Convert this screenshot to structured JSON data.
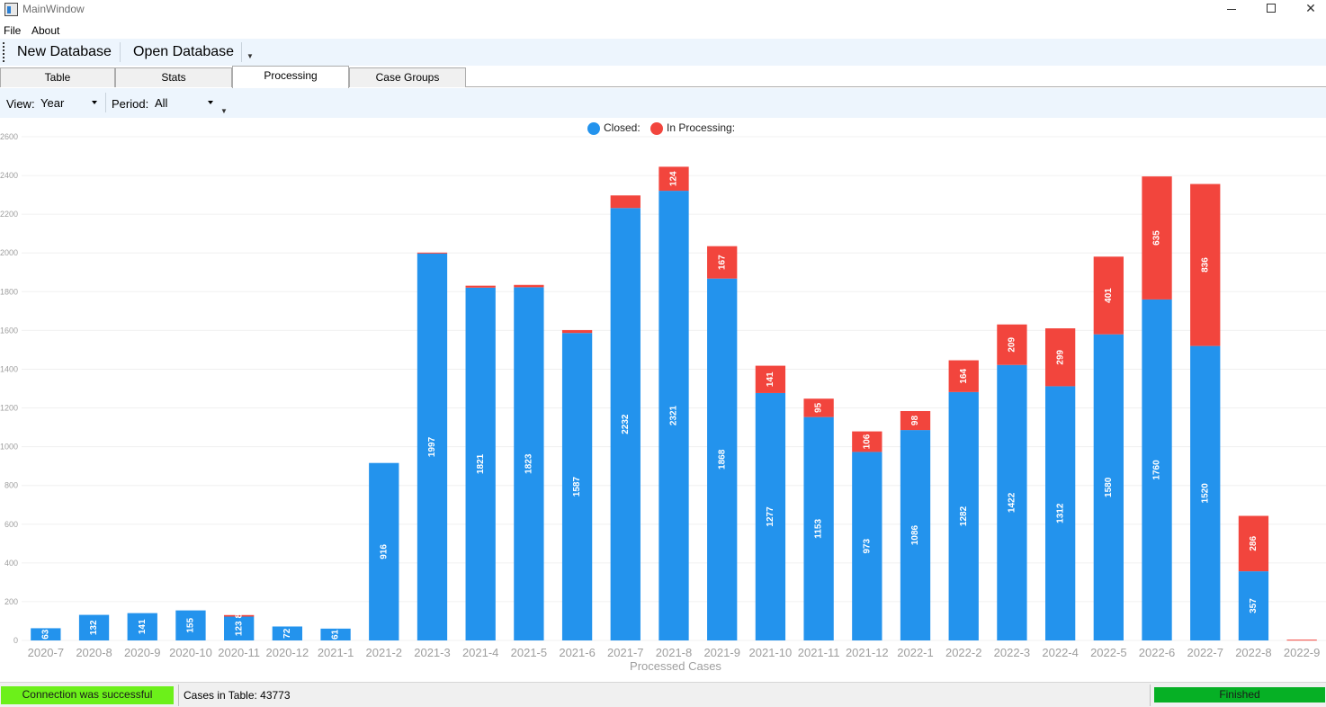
{
  "window": {
    "title": "MainWindow"
  },
  "menu": {
    "file": "File",
    "about": "About"
  },
  "toolbar": {
    "new_db": "New Database",
    "open_db": "Open Database"
  },
  "tabs": [
    {
      "label": "Table"
    },
    {
      "label": "Stats"
    },
    {
      "label": "Processing"
    },
    {
      "label": "Case Groups"
    }
  ],
  "filters": {
    "view_label": "View:",
    "view_value": "Year",
    "period_label": "Period:",
    "period_value": "All"
  },
  "legend": {
    "closed": "Closed:",
    "processing": "In Processing:"
  },
  "colors": {
    "closed": "#2393ed",
    "processing": "#f2453d",
    "status_ok": "#6cf01a",
    "progress": "#06b025"
  },
  "chart_data": {
    "type": "bar",
    "stacked": true,
    "xlabel": "Processed Cases",
    "ylim": [
      0,
      2600
    ],
    "yticks": [
      0,
      200,
      400,
      600,
      800,
      1000,
      1200,
      1400,
      1600,
      1800,
      2000,
      2200,
      2400,
      2600
    ],
    "grid": true,
    "legend_position": "top-center",
    "categories": [
      "2020-7",
      "2020-8",
      "2020-9",
      "2020-10",
      "2020-11",
      "2020-12",
      "2021-1",
      "2021-2",
      "2021-3",
      "2021-4",
      "2021-5",
      "2021-6",
      "2021-7",
      "2021-8",
      "2021-9",
      "2021-10",
      "2021-11",
      "2021-12",
      "2022-1",
      "2022-2",
      "2022-3",
      "2022-4",
      "2022-5",
      "2022-6",
      "2022-7",
      "2022-8",
      "2022-9"
    ],
    "series": [
      {
        "name": "Closed:",
        "values": [
          63,
          132,
          141,
          155,
          123,
          72,
          61,
          916,
          1997,
          1821,
          1823,
          1587,
          2232,
          2321,
          1868,
          1277,
          1153,
          973,
          1086,
          1282,
          1422,
          1312,
          1580,
          1760,
          1520,
          357,
          0
        ]
      },
      {
        "name": "In Processing:",
        "values": [
          0,
          0,
          0,
          0,
          8,
          0,
          0,
          0,
          5,
          10,
          12,
          15,
          65,
          124,
          167,
          141,
          95,
          106,
          98,
          164,
          209,
          299,
          401,
          635,
          836,
          286,
          4
        ]
      }
    ],
    "data_labels": {
      "closed": [
        "63",
        "132",
        "141",
        "155",
        "123",
        "72",
        "61",
        "916",
        "1997",
        "1821",
        "1823",
        "1587",
        "2232",
        "2321",
        "1868",
        "1277",
        "1153",
        "973",
        "1086",
        "1282",
        "1422",
        "1312",
        "1580",
        "1760",
        "1520",
        "357",
        ""
      ],
      "processing": [
        "",
        "",
        "",
        "",
        "8",
        "",
        "",
        "",
        "",
        "",
        "",
        "",
        "",
        "124",
        "167",
        "141",
        "95",
        "106",
        "98",
        "164",
        "209",
        "299",
        "401",
        "635",
        "836",
        "286",
        ""
      ]
    }
  },
  "status": {
    "connection": "Connection was successful",
    "cases": "Cases in Table: 43773",
    "progress": "Finished",
    "progress_fraction": 1.0
  }
}
